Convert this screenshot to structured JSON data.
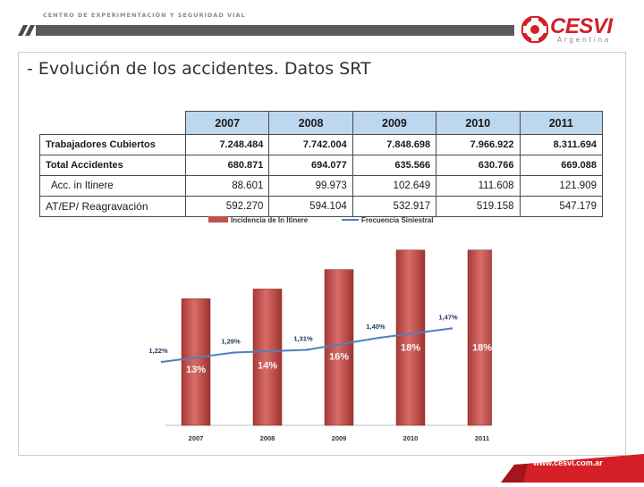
{
  "header": {
    "subtitle": "CENTRO DE EXPERIMENTACIÓN Y SEGURIDAD VIAL",
    "logo_text": "CESVI",
    "logo_subtext": "Argentina"
  },
  "title": "- Evolución de los accidentes. Datos SRT",
  "table": {
    "years": [
      "2007",
      "2008",
      "2009",
      "2010",
      "2011"
    ],
    "rows": [
      {
        "label": "Trabajadores Cubiertos",
        "values": [
          "7.248.484",
          "7.742.004",
          "7.848.698",
          "7.966.922",
          "8.311.694"
        ]
      },
      {
        "label": "Total Accidentes",
        "values": [
          "680.871",
          "694.077",
          "635.566",
          "630.766",
          "669.088"
        ]
      },
      {
        "label": "Acc. in Itinere",
        "values": [
          "88.601",
          "99.973",
          "102.649",
          "111.608",
          "121.909"
        ]
      },
      {
        "label": "AT/EP/ Reagravación",
        "values": [
          "592.270",
          "594.104",
          "532.917",
          "519.158",
          "547.179"
        ]
      }
    ]
  },
  "chart_data": {
    "type": "bar",
    "categories": [
      "2007",
      "2008",
      "2009",
      "2010",
      "2011"
    ],
    "series": [
      {
        "name": "Incidencia de In Itinere",
        "kind": "bar",
        "values": [
          13,
          14,
          16,
          18,
          18
        ],
        "labels": [
          "13%",
          "14%",
          "16%",
          "18%",
          "18%"
        ],
        "color": "#c0504d"
      },
      {
        "name": "Frecuencia Siniestral",
        "kind": "line",
        "values": [
          1.22,
          1.29,
          1.31,
          1.4,
          1.47
        ],
        "labels": [
          "1,22%",
          "1,29%",
          "1,31%",
          "1,40%",
          "1,47%"
        ],
        "color": "#4f81bd"
      }
    ],
    "legend": [
      "Incidencia de In Itinere",
      "Frecuencia Siniestral"
    ],
    "legend_position": "top"
  },
  "footer": {
    "url": "www.cesvi.com.ar"
  }
}
